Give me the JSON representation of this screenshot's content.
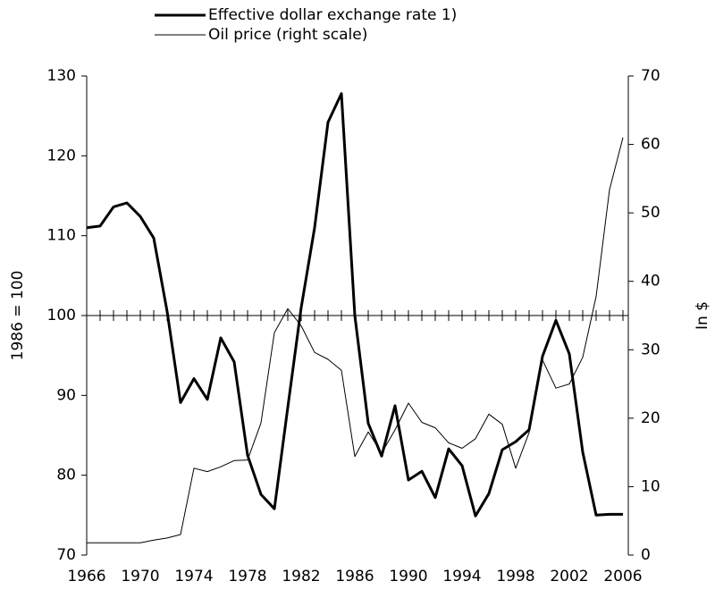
{
  "chart_data": {
    "type": "line",
    "x": [
      1966,
      1967,
      1968,
      1969,
      1970,
      1971,
      1972,
      1973,
      1974,
      1975,
      1976,
      1977,
      1978,
      1979,
      1980,
      1981,
      1982,
      1983,
      1984,
      1985,
      1986,
      1987,
      1988,
      1989,
      1990,
      1991,
      1992,
      1993,
      1994,
      1995,
      1996,
      1997,
      1998,
      1999,
      2000,
      2001,
      2002,
      2003,
      2004,
      2005,
      2006
    ],
    "series": [
      {
        "name": "Effective dollar exchange rate 1)",
        "color": "#000000",
        "width": 3,
        "axis": "y",
        "values": [
          111,
          111.2,
          113.6,
          114.1,
          112.4,
          109.7,
          100.5,
          89.1,
          92.1,
          89.5,
          97.2,
          94.2,
          82.5,
          77.6,
          75.8,
          88.5,
          101,
          111,
          124.2,
          127.8,
          100,
          86.5,
          82.4,
          88.7,
          79.4,
          80.5,
          77.2,
          83.3,
          81.2,
          74.9,
          77.7,
          83.2,
          84.2,
          85.7,
          94.9,
          99.4,
          95.2,
          82.9,
          75,
          75.1,
          75.1
        ]
      },
      {
        "name": "Oil price (right scale)",
        "color": "#000000",
        "width": 1,
        "axis": "y2",
        "values": [
          1.8,
          1.8,
          1.8,
          1.8,
          1.8,
          2.2,
          2.5,
          3,
          12.7,
          12.2,
          12.9,
          13.8,
          13.9,
          19.3,
          32.5,
          36,
          33.5,
          29.6,
          28.6,
          27,
          14.4,
          18,
          14.9,
          18.3,
          22.2,
          19.4,
          18.6,
          16.4,
          15.6,
          17,
          20.6,
          19.1,
          12.7,
          17.9,
          28.5,
          24.4,
          25,
          28.9,
          37.8,
          53.4,
          61
        ]
      }
    ],
    "xlim": [
      1966,
      2006
    ],
    "xticks": [
      1966,
      1970,
      1974,
      1978,
      1982,
      1986,
      1990,
      1994,
      1998,
      2002,
      2006
    ],
    "ylim": [
      70,
      130
    ],
    "yticks": [
      70,
      80,
      90,
      100,
      110,
      120,
      130
    ],
    "y2lim": [
      0,
      70
    ],
    "y2ticks": [
      0,
      10,
      20,
      30,
      40,
      50,
      60,
      70
    ],
    "reference_line": 100,
    "ylabel": "1986 = 100",
    "y2label": "In $"
  }
}
